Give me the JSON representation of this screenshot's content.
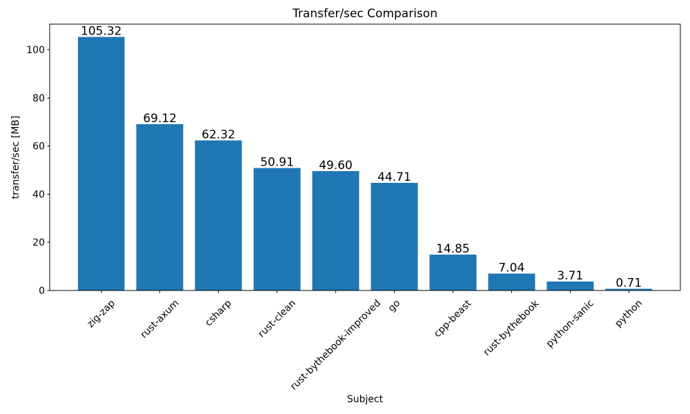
{
  "chart_data": {
    "type": "bar",
    "title": "Transfer/sec Comparison",
    "xlabel": "Subject",
    "ylabel": "transfer/sec [MB]",
    "categories": [
      "zig-zap",
      "rust-axum",
      "csharp",
      "rust-clean",
      "rust-bythebook-improved",
      "go",
      "cpp-beast",
      "rust-bythebook",
      "python-sanic",
      "python"
    ],
    "values": [
      105.32,
      69.12,
      62.32,
      50.91,
      49.6,
      44.71,
      14.85,
      7.04,
      3.71,
      0.71
    ],
    "value_labels": [
      "105.32",
      "69.12",
      "62.32",
      "50.91",
      "49.60",
      "44.71",
      "14.85",
      "7.04",
      "3.71",
      "0.71"
    ],
    "yticks": [
      0,
      20,
      40,
      60,
      80,
      100
    ],
    "ylim": [
      0,
      110.59
    ],
    "bar_color": "#1f77b4",
    "axis_color": "#000000",
    "text_color": "#000000",
    "background_color": "#ffffff",
    "grid": false,
    "legend": "none",
    "x_tick_rotation_deg": 45
  }
}
